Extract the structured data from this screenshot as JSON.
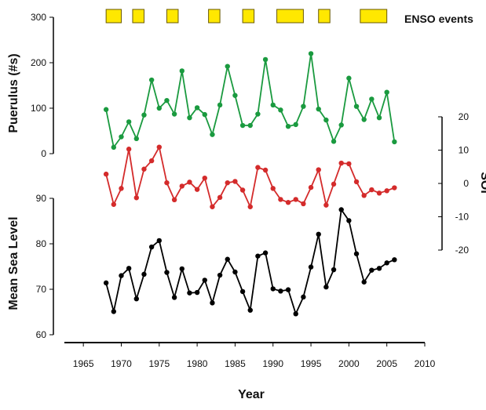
{
  "chart_data": {
    "type": "line",
    "legend": {
      "enso_label": "ENSO events",
      "placement": "top-right"
    },
    "enso_events": [
      [
        1968,
        1970
      ],
      [
        1971.5,
        1973
      ],
      [
        1976,
        1977.5
      ],
      [
        1981.5,
        1983
      ],
      [
        1986,
        1987.5
      ],
      [
        1990.5,
        1994
      ],
      [
        1996,
        1997.5
      ],
      [
        2001.5,
        2005
      ]
    ],
    "x": {
      "label": "Year",
      "range": [
        1962.5,
        2010
      ],
      "ticks": [
        1965,
        1970,
        1975,
        1980,
        1985,
        1990,
        1995,
        2000,
        2005,
        2010
      ]
    },
    "puerulus": {
      "label": "Puerulus (#s)",
      "range": [
        0,
        300
      ],
      "ticks": [
        0,
        100,
        200,
        300
      ],
      "color": "#1a9a3f",
      "x": [
        1968,
        1969,
        1970,
        1971,
        1972,
        1973,
        1974,
        1975,
        1976,
        1977,
        1978,
        1979,
        1980,
        1981,
        1982,
        1983,
        1984,
        1985,
        1986,
        1987,
        1988,
        1989,
        1990,
        1991,
        1992,
        1993,
        1994,
        1995,
        1996,
        1997,
        1998,
        1999,
        2000,
        2001,
        2002,
        2003,
        2004,
        2005,
        2006
      ],
      "values": [
        97,
        14,
        37,
        70,
        33,
        85,
        162,
        100,
        117,
        87,
        182,
        79,
        101,
        86,
        42,
        107,
        192,
        128,
        62,
        62,
        87,
        207,
        107,
        96,
        60,
        64,
        104,
        220,
        98,
        74,
        27,
        63,
        166,
        104,
        75,
        120,
        79,
        135,
        26
      ]
    },
    "soi": {
      "label": "SOI",
      "range": [
        -20,
        20
      ],
      "ticks": [
        20,
        10,
        0,
        -10,
        -20
      ],
      "color": "#d42b2b",
      "x": [
        1968,
        1969,
        1970,
        1971,
        1972,
        1973,
        1974,
        1975,
        1976,
        1977,
        1978,
        1979,
        1980,
        1981,
        1982,
        1983,
        1984,
        1985,
        1986,
        1987,
        1988,
        1989,
        1990,
        1991,
        1992,
        1993,
        1994,
        1995,
        1996,
        1997,
        1998,
        1999,
        2000,
        2001,
        2002,
        2003,
        2004,
        2005,
        2006
      ],
      "values": [
        2.8,
        -6.3,
        -1.5,
        10.3,
        -4.3,
        4.3,
        6.8,
        10.9,
        0.2,
        -4.9,
        -0.8,
        0.4,
        -1.8,
        1.6,
        -7.0,
        -4.2,
        0.2,
        0.6,
        -2.0,
        -7.0,
        4.8,
        4.0,
        -1.5,
        -4.8,
        -5.7,
        -4.8,
        -6.1,
        -1.2,
        4.1,
        -6.5,
        -0.2,
        6.1,
        5.9,
        0.5,
        -3.6,
        -1.9,
        -2.9,
        -2.2,
        -1.3
      ]
    },
    "msl": {
      "label": "Mean Sea Level",
      "range": [
        60,
        90
      ],
      "ticks": [
        60,
        70,
        80,
        90
      ],
      "color": "#000000",
      "x": [
        1968,
        1969,
        1970,
        1971,
        1972,
        1973,
        1974,
        1975,
        1976,
        1977,
        1978,
        1979,
        1980,
        1981,
        1982,
        1983,
        1984,
        1985,
        1986,
        1987,
        1988,
        1989,
        1990,
        1991,
        1992,
        1993,
        1994,
        1995,
        1996,
        1997,
        1998,
        1999,
        2000,
        2001,
        2002,
        2003,
        2004,
        2005,
        2006
      ],
      "values": [
        71.4,
        65.1,
        73.0,
        74.6,
        67.9,
        73.3,
        79.3,
        80.7,
        73.7,
        68.2,
        74.5,
        69.2,
        69.3,
        72.0,
        67.0,
        73.1,
        76.6,
        73.8,
        69.5,
        65.4,
        77.3,
        78.0,
        70.1,
        69.6,
        69.9,
        64.6,
        68.3,
        74.9,
        82.1,
        70.5,
        74.3,
        87.5,
        85.1,
        77.8,
        71.6,
        74.2,
        74.6,
        75.8,
        76.5
      ]
    }
  }
}
